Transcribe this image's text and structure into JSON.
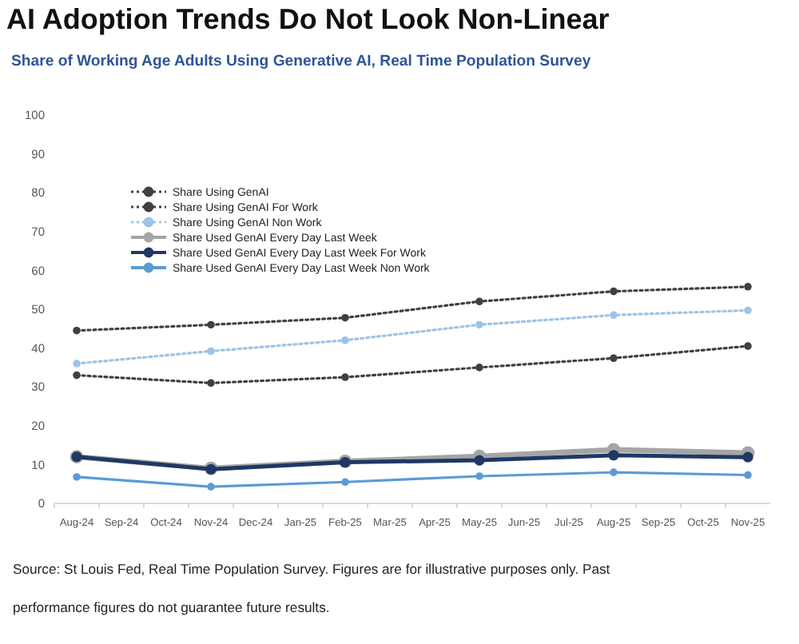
{
  "chart_data": {
    "type": "line",
    "title": "AI Adoption Trends Do Not Look Non-Linear",
    "subtitle": "Share of Working Age Adults Using Generative AI, Real Time Population Survey",
    "categories": [
      "Aug-24",
      "Sep-24",
      "Oct-24",
      "Nov-24",
      "Dec-24",
      "Jan-25",
      "Feb-25",
      "Mar-25",
      "Apr-25",
      "May-25",
      "Jun-25",
      "Jul-25",
      "Aug-25",
      "Sep-25",
      "Oct-25",
      "Nov-25"
    ],
    "series": [
      {
        "name": "Share Using GenAI",
        "color": "#404040",
        "line_style": "dotted",
        "x": [
          "Aug-24",
          "Nov-24",
          "Feb-25",
          "May-25",
          "Aug-25",
          "Nov-25"
        ],
        "values": [
          44.5,
          46,
          47.8,
          52,
          54.6,
          55.8
        ]
      },
      {
        "name": "Share Using GenAI For Work",
        "color": "#404040",
        "line_style": "dotted",
        "x": [
          "Aug-24",
          "Nov-24",
          "Feb-25",
          "May-25",
          "Aug-25",
          "Nov-25"
        ],
        "values": [
          33,
          31,
          32.5,
          35,
          37.4,
          40.5
        ]
      },
      {
        "name": "Share Using GenAI Non Work",
        "color": "#9dc3e6",
        "line_style": "dotted",
        "x": [
          "Aug-24",
          "Nov-24",
          "Feb-25",
          "May-25",
          "Aug-25",
          "Nov-25"
        ],
        "values": [
          36,
          39.2,
          42,
          46,
          48.5,
          49.7
        ]
      },
      {
        "name": "Share Used GenAI Every Day Last Week",
        "color": "#a5a5a5",
        "line_style": "solid",
        "x": [
          "Aug-24",
          "Nov-24",
          "Feb-25",
          "May-25",
          "Aug-25",
          "Nov-25"
        ],
        "values": [
          12,
          9,
          10.8,
          12.1,
          13.8,
          13
        ]
      },
      {
        "name": "Share Used GenAI Every Day Last Week For Work",
        "color": "#1f3864",
        "line_style": "solid",
        "x": [
          "Aug-24",
          "Nov-24",
          "Feb-25",
          "May-25",
          "Aug-25",
          "Nov-25"
        ],
        "values": [
          12,
          8.8,
          10.6,
          11.1,
          12.4,
          11.9
        ]
      },
      {
        "name": "Share Used GenAI Every Day Last Week Non Work",
        "color": "#5b9bd5",
        "line_style": "solid",
        "x": [
          "Aug-24",
          "Nov-24",
          "Feb-25",
          "May-25",
          "Aug-25",
          "Nov-25"
        ],
        "values": [
          6.8,
          4.3,
          5.5,
          7,
          8,
          7.3
        ]
      }
    ],
    "ylim": [
      0,
      100
    ],
    "yticks": [
      0,
      10,
      20,
      30,
      40,
      50,
      60,
      70,
      80,
      90,
      100
    ],
    "grid": false,
    "legend": "top left",
    "marker": "circle",
    "annotations": [
      "Source: St Louis Fed, Real Time Population Survey. Figures are for illustrative purposes only. Past performance figures do not guarantee future results."
    ]
  }
}
